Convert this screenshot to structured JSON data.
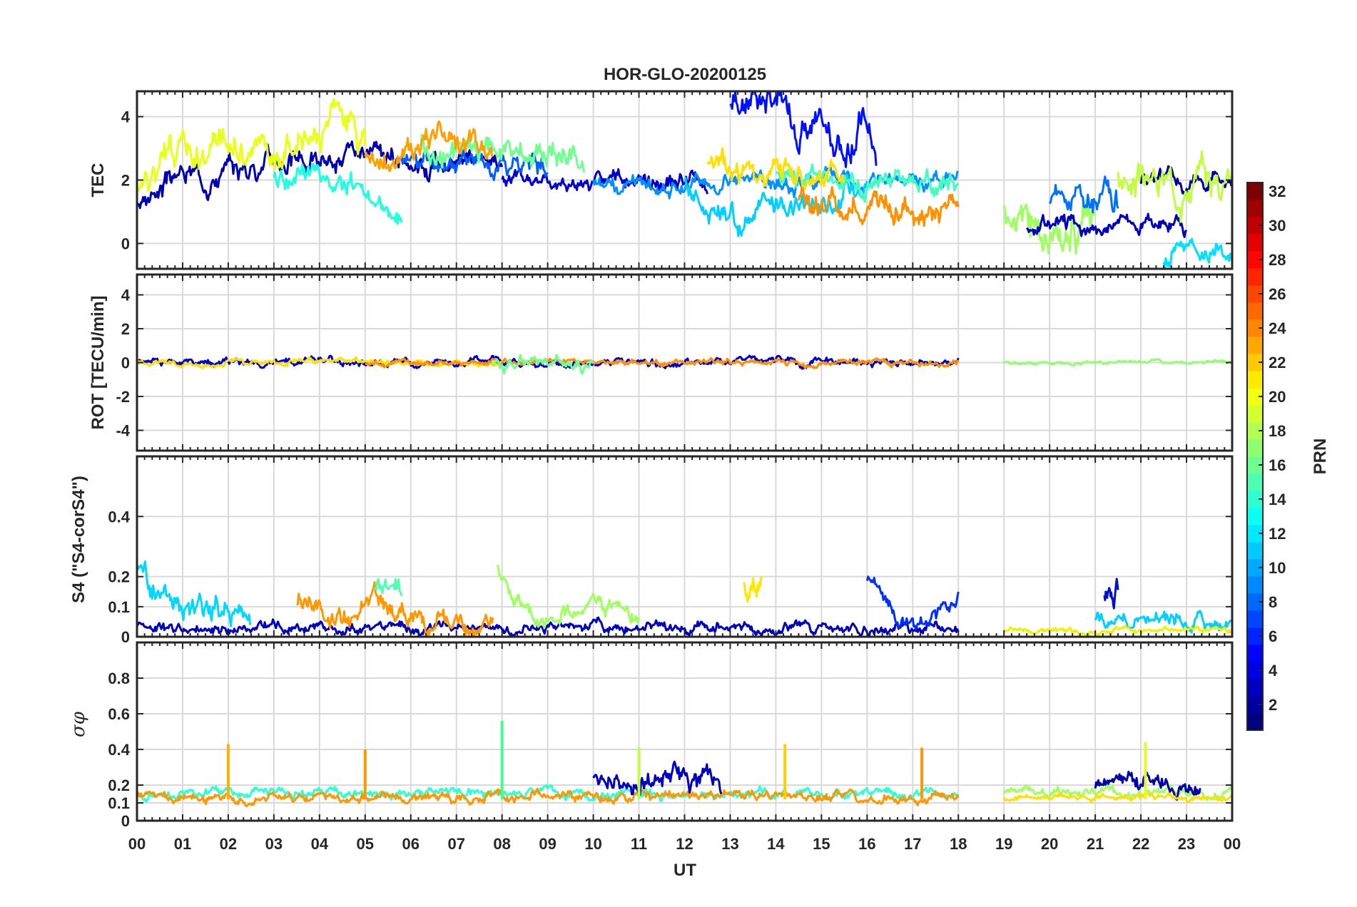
{
  "chart_data": {
    "type": "line",
    "title": "HOR-GLO-20200125",
    "xlabel": "UT",
    "x_tick_labels": [
      "00",
      "01",
      "02",
      "03",
      "04",
      "05",
      "06",
      "07",
      "08",
      "09",
      "10",
      "11",
      "12",
      "13",
      "14",
      "15",
      "16",
      "17",
      "18",
      "19",
      "20",
      "21",
      "22",
      "23",
      "00"
    ],
    "xlim": [
      0,
      24
    ],
    "grid": true,
    "data_gap": [
      18,
      19
    ],
    "colorbar": {
      "label": "PRN",
      "colormap": "jet",
      "range": [
        1,
        32
      ],
      "tick_labels": [
        "2",
        "4",
        "6",
        "8",
        "10",
        "12",
        "14",
        "16",
        "18",
        "20",
        "22",
        "24",
        "26",
        "28",
        "30",
        "32"
      ]
    },
    "panels": [
      {
        "id": "tec",
        "ylabel": "TEC",
        "ylim": [
          -0.8,
          4.8
        ],
        "y_ticks": [
          0,
          2,
          4
        ],
        "y_tick_labels": [
          "0",
          "2",
          "4"
        ],
        "series": [
          {
            "prn": 2,
            "color": "#0000b3",
            "start": 0,
            "end": 8,
            "base": 2.0,
            "amp": 0.4,
            "seed": 3,
            "points": [
              [
                0,
                1.3
              ],
              [
                1,
                2.2
              ],
              [
                2,
                2.2
              ],
              [
                3,
                2.7
              ],
              [
                4,
                2.6
              ],
              [
                5,
                2.6
              ]
            ]
          },
          {
            "prn": 3,
            "color": "#0000d0",
            "start": 8,
            "end": 12.5,
            "base": 1.9,
            "amp": 0.3,
            "seed": 5
          },
          {
            "prn": 4,
            "color": "#0010ff",
            "start": 13.0,
            "end": 16.2,
            "base": 3.8,
            "amp": 0.6,
            "seed": 7,
            "points": [
              [
                13.1,
                4.5
              ],
              [
                13.6,
                4.7
              ],
              [
                14.3,
                4.2
              ],
              [
                15.0,
                3.3
              ],
              [
                15.5,
                3.0
              ],
              [
                15.9,
                4.1
              ],
              [
                16.2,
                2.5
              ]
            ]
          },
          {
            "prn": 6,
            "color": "#0060ff",
            "start": 5.8,
            "end": 9,
            "base": 2.6,
            "amp": 0.4,
            "seed": 11
          },
          {
            "prn": 8,
            "color": "#0090ff",
            "start": 10,
            "end": 18,
            "base": 1.9,
            "amp": 0.3,
            "seed": 13
          },
          {
            "prn": 11,
            "color": "#00d0ff",
            "start": 12,
            "end": 16,
            "base": 1.3,
            "amp": 0.4,
            "seed": 17,
            "points": [
              [
                12,
                1.9
              ],
              [
                12.7,
                0.8
              ],
              [
                13.2,
                0.6
              ],
              [
                13.8,
                1.2
              ],
              [
                15,
                1.2
              ],
              [
                16,
                2.0
              ]
            ]
          },
          {
            "prn": 13,
            "color": "#20ffe0",
            "start": 3,
            "end": 5.8,
            "base": 1.5,
            "amp": 0.4,
            "seed": 19,
            "points": [
              [
                3,
                2.0
              ],
              [
                4,
                2.2
              ],
              [
                4.8,
                1.7
              ],
              [
                5.4,
                0.9
              ],
              [
                5.8,
                0.8
              ]
            ]
          },
          {
            "prn": 14,
            "color": "#40ffc0",
            "start": 14,
            "end": 18,
            "base": 2.0,
            "amp": 0.4,
            "seed": 23
          },
          {
            "prn": 16,
            "color": "#70ff90",
            "start": 6.2,
            "end": 9.8,
            "base": 2.8,
            "amp": 0.5,
            "seed": 29
          },
          {
            "prn": 19,
            "color": "#e8ff18",
            "start": 0,
            "end": 5,
            "base": 2.4,
            "amp": 0.6,
            "seed": 31,
            "points": [
              [
                0,
                1.8
              ],
              [
                1,
                2.8
              ],
              [
                2,
                3.1
              ],
              [
                3,
                2.8
              ],
              [
                4,
                3.4
              ],
              [
                4.4,
                4.6
              ],
              [
                5,
                2.6
              ]
            ]
          },
          {
            "prn": 20,
            "color": "#ffe000",
            "start": 12.5,
            "end": 15.5,
            "base": 2.3,
            "amp": 0.5,
            "seed": 37
          },
          {
            "prn": 22,
            "color": "#ffa000",
            "start": 5,
            "end": 7.8,
            "base": 2.6,
            "amp": 0.5,
            "seed": 41,
            "points": [
              [
                5,
                2.6
              ],
              [
                5.5,
                2.4
              ],
              [
                6.2,
                3.1
              ],
              [
                6.5,
                3.6
              ],
              [
                7.2,
                2.8
              ],
              [
                7.8,
                2.6
              ]
            ]
          },
          {
            "prn": 23,
            "color": "#ff9000",
            "start": 14.5,
            "end": 18,
            "base": 1.2,
            "amp": 0.5,
            "seed": 43
          },
          {
            "prn": 17,
            "color": "#a0ff60",
            "start": 19,
            "end": 21,
            "base": 0.6,
            "amp": 0.8,
            "seed": 47
          },
          {
            "prn": 3,
            "color": "#0000c0",
            "start": 19.5,
            "end": 23,
            "base": 0.6,
            "amp": 0.3,
            "seed": 53
          },
          {
            "prn": 6,
            "color": "#0070ff",
            "start": 20,
            "end": 21.5,
            "base": 1.5,
            "amp": 0.5,
            "seed": 59
          },
          {
            "prn": 2,
            "color": "#0000a0",
            "start": 22,
            "end": 24,
            "base": 1.9,
            "amp": 0.3,
            "seed": 61
          },
          {
            "prn": 18,
            "color": "#c0ff40",
            "start": 21.5,
            "end": 24,
            "base": 2.0,
            "amp": 0.6,
            "seed": 67
          },
          {
            "prn": 12,
            "color": "#00e0ff",
            "start": 22.5,
            "end": 24,
            "base": -0.3,
            "amp": 0.4,
            "seed": 71
          }
        ]
      },
      {
        "id": "rot",
        "ylabel": "ROT [TECU/min]",
        "ylim": [
          -5.2,
          5.2
        ],
        "y_ticks": [
          -4,
          -2,
          0,
          2,
          4
        ],
        "y_tick_labels": [
          "-4",
          "-2",
          "0",
          "2",
          "4"
        ],
        "series": [
          {
            "prn": 2,
            "color": "#0000d0",
            "start": 0,
            "end": 18,
            "base": 0,
            "amp": 0.25,
            "seed": 73
          },
          {
            "prn": 20,
            "color": "#ffe000",
            "start": 0,
            "end": 8,
            "base": 0,
            "amp": 0.2,
            "seed": 79
          },
          {
            "prn": 22,
            "color": "#ff9000",
            "start": 5,
            "end": 18,
            "base": 0,
            "amp": 0.2,
            "seed": 83
          },
          {
            "prn": 16,
            "color": "#70ff90",
            "start": 7.8,
            "end": 10,
            "base": 0,
            "amp": 0.4,
            "seed": 89
          },
          {
            "prn": 17,
            "color": "#90ff70",
            "start": 19,
            "end": 24,
            "base": 0,
            "amp": 0.12,
            "seed": 97
          }
        ]
      },
      {
        "id": "s4",
        "ylabel": "S4 (\"S4-corS4\")",
        "ylim": [
          0,
          0.6
        ],
        "y_ticks": [
          0,
          0.1,
          0.2,
          0.4
        ],
        "y_tick_labels": [
          "0",
          "0.1",
          "0.2",
          "0.4"
        ],
        "series": [
          {
            "prn": 12,
            "color": "#00d8ff",
            "start": 0,
            "end": 2.5,
            "base": 0.09,
            "amp": 0.05,
            "seed": 101,
            "points": [
              [
                0,
                0.25
              ],
              [
                0.5,
                0.15
              ],
              [
                1,
                0.08
              ],
              [
                2,
                0.09
              ],
              [
                2.5,
                0.06
              ]
            ]
          },
          {
            "prn": 2,
            "color": "#0000c0",
            "start": 0,
            "end": 18,
            "base": 0.03,
            "amp": 0.02,
            "seed": 103
          },
          {
            "prn": 22,
            "color": "#ff9800",
            "start": 3.5,
            "end": 7.8,
            "base": 0.04,
            "amp": 0.04,
            "seed": 107,
            "points": [
              [
                3.6,
                0.12
              ],
              [
                4.5,
                0.03
              ],
              [
                5.4,
                0.12
              ],
              [
                6,
                0.06
              ],
              [
                6.5,
                0.03
              ],
              [
                7.5,
                0.05
              ]
            ]
          },
          {
            "prn": 15,
            "color": "#50ffb0",
            "start": 5.2,
            "end": 5.8,
            "base": 0.15,
            "amp": 0.05,
            "seed": 109
          },
          {
            "prn": 17,
            "color": "#a0ff60",
            "start": 7.9,
            "end": 11,
            "base": 0.06,
            "amp": 0.03,
            "seed": 113,
            "points": [
              [
                7.9,
                0.25
              ],
              [
                8.3,
                0.12
              ],
              [
                8.6,
                0.06
              ],
              [
                9.5,
                0.06
              ],
              [
                9.9,
                0.1
              ],
              [
                11,
                0.07
              ]
            ]
          },
          {
            "prn": 20,
            "color": "#ffe800",
            "start": 13.3,
            "end": 13.7,
            "base": 0.16,
            "amp": 0.05,
            "seed": 127
          },
          {
            "prn": 4,
            "color": "#0030ff",
            "start": 16,
            "end": 18,
            "base": 0.07,
            "amp": 0.03,
            "seed": 131,
            "points": [
              [
                16.05,
                0.19
              ],
              [
                16.5,
                0.1
              ],
              [
                16.8,
                0.05
              ],
              [
                17.5,
                0.07
              ],
              [
                18,
                0.12
              ]
            ]
          },
          {
            "prn": 3,
            "color": "#0010d0",
            "start": 21.2,
            "end": 21.5,
            "base": 0.15,
            "amp": 0.05,
            "seed": 137
          },
          {
            "prn": 12,
            "color": "#00d0ff",
            "start": 21,
            "end": 24,
            "base": 0.05,
            "amp": 0.03,
            "seed": 139
          },
          {
            "prn": 19,
            "color": "#f0f000",
            "start": 19,
            "end": 24,
            "base": 0.02,
            "amp": 0.01,
            "seed": 149
          }
        ]
      },
      {
        "id": "sigma",
        "ylabel": "σφ",
        "ylim": [
          0,
          1.0
        ],
        "y_ticks": [
          0,
          0.1,
          0.2,
          0.4,
          0.6,
          0.8
        ],
        "y_tick_labels": [
          "0",
          "0.1",
          "0.2",
          "0.4",
          "0.6",
          "0.8"
        ],
        "series": [
          {
            "prn": 14,
            "color": "#30ffd0",
            "start": 0,
            "end": 18,
            "base": 0.15,
            "amp": 0.03,
            "seed": 151
          },
          {
            "prn": 22,
            "color": "#ff9800",
            "start": 0,
            "end": 18,
            "base": 0.13,
            "amp": 0.03,
            "seed": 157
          },
          {
            "prn": 2,
            "color": "#0000c0",
            "start": 10,
            "end": 12.8,
            "base": 0.22,
            "amp": 0.07,
            "seed": 163
          },
          {
            "prn": 17,
            "color": "#a0ff60",
            "start": 19,
            "end": 24,
            "base": 0.16,
            "amp": 0.03,
            "seed": 167
          },
          {
            "prn": 2,
            "color": "#0000b0",
            "start": 21,
            "end": 23.3,
            "base": 0.2,
            "amp": 0.05,
            "seed": 173
          },
          {
            "prn": 20,
            "color": "#ffe000",
            "start": 19,
            "end": 24,
            "base": 0.13,
            "amp": 0.02,
            "seed": 179
          }
        ],
        "spikes": [
          {
            "x": 2.0,
            "y": 0.43,
            "color": "#ffb000"
          },
          {
            "x": 5.0,
            "y": 0.4,
            "color": "#ff9800"
          },
          {
            "x": 8.0,
            "y": 0.56,
            "color": "#40ff90"
          },
          {
            "x": 11.0,
            "y": 0.41,
            "color": "#c0ff40"
          },
          {
            "x": 14.2,
            "y": 0.43,
            "color": "#ffd000"
          },
          {
            "x": 17.2,
            "y": 0.41,
            "color": "#ff9800"
          },
          {
            "x": 22.1,
            "y": 0.44,
            "color": "#e0ff20"
          }
        ]
      }
    ]
  }
}
